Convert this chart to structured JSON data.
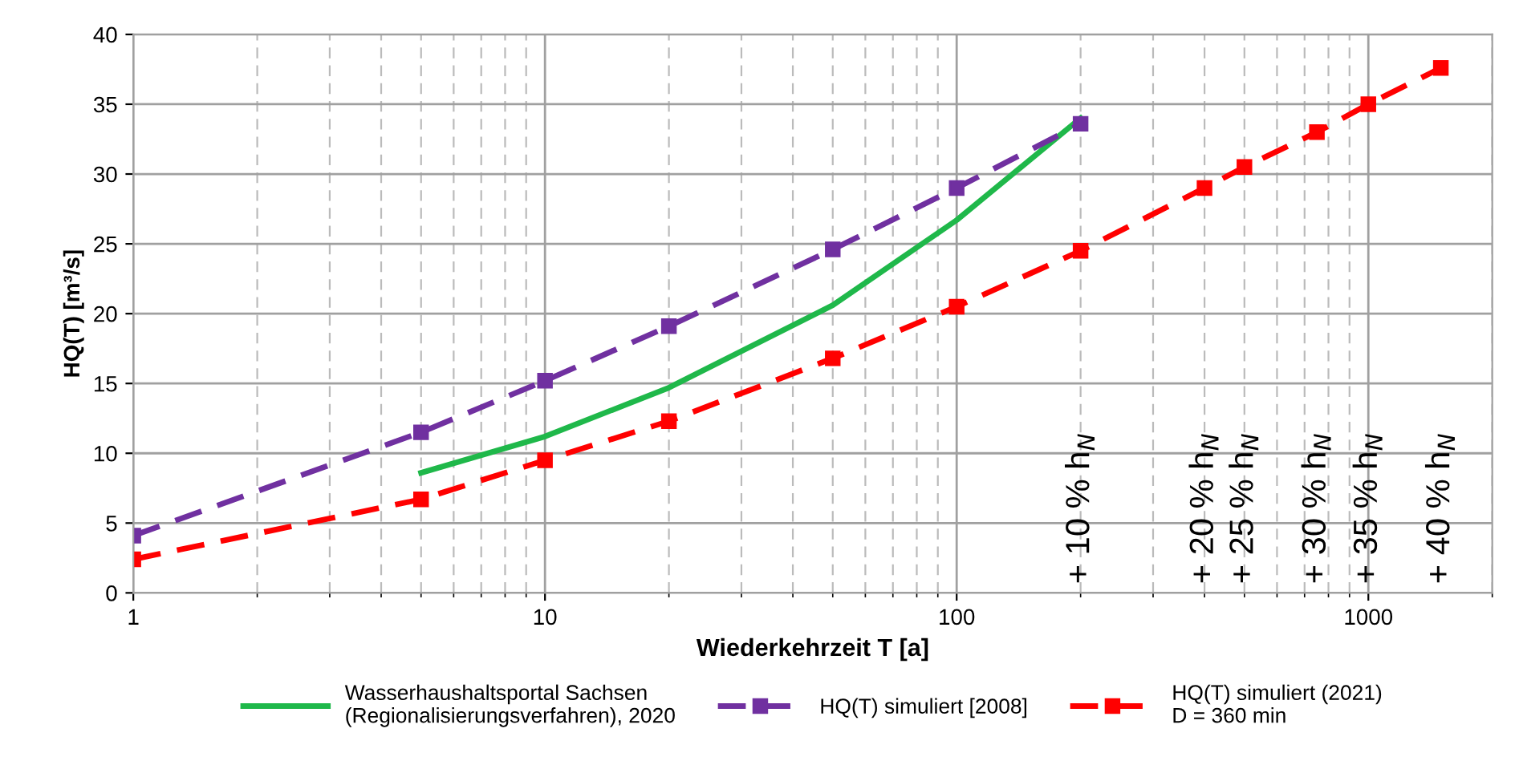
{
  "chart_data": {
    "type": "line",
    "xlabel": "Wiederkehrzeit T [a]",
    "ylabel": "HQ(T) [m³/s]",
    "log": "x",
    "xlim": [
      1,
      2000
    ],
    "xticks": [
      1,
      10,
      100,
      1000
    ],
    "ylim": [
      0,
      40
    ],
    "yticks": [
      0,
      5,
      10,
      15,
      20,
      25,
      30,
      35,
      40
    ],
    "grid": true,
    "legend": "bottom",
    "series": [
      {
        "name": "Wasserhaushaltsportal Sachsen\n(Regionalisierungsverfahren), 2020",
        "color": "#1fb84a",
        "marker": "none",
        "line_style": "solid",
        "x": [
          5,
          10,
          20,
          50,
          100,
          200
        ],
        "values": [
          8.6,
          11.2,
          14.7,
          20.6,
          26.7,
          34.0
        ]
      },
      {
        "name": "HQ(T) simuliert [2008]",
        "color": "#7030a0",
        "marker": "square",
        "line_style": "dashed",
        "x": [
          1,
          5,
          10,
          20,
          50,
          100,
          200
        ],
        "values": [
          4.1,
          11.5,
          15.2,
          19.1,
          24.6,
          29.0,
          33.6
        ]
      },
      {
        "name": "HQ(T) simuliert (2021)\nD = 360 min",
        "color": "#ff0000",
        "marker": "square",
        "line_style": "dashed",
        "x": [
          1,
          5,
          10,
          20,
          50,
          100,
          200,
          400,
          500,
          750,
          1000,
          1500
        ],
        "values": [
          2.4,
          6.7,
          9.5,
          12.3,
          16.8,
          20.5,
          24.5,
          29.0,
          30.5,
          33.0,
          35.0,
          37.6
        ]
      }
    ],
    "annotations": [
      "+ 10 % h$_{N}$",
      "+ 20 % h$_{N}$",
      "+ 25 % h$_{N}$",
      "+ 30 % h$_{N}$",
      "+ 35 % h$_{N}$",
      "+ 40 % h$_{N}$"
    ]
  }
}
